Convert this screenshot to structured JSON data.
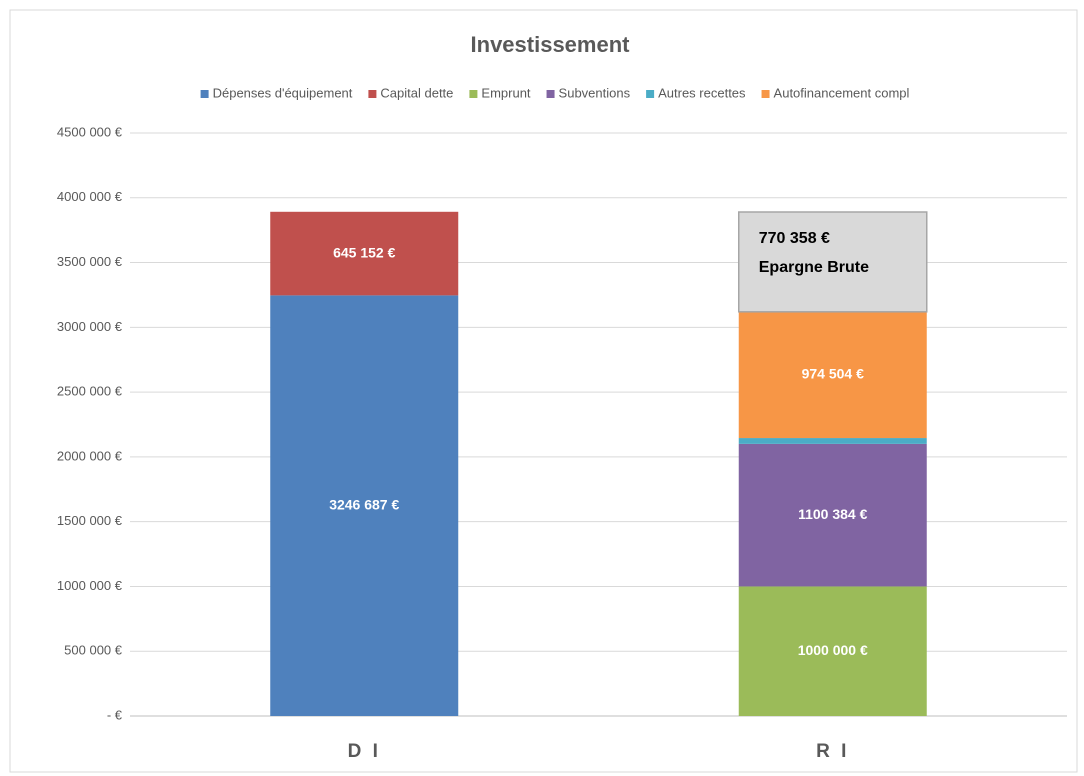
{
  "chart_data": {
    "type": "stacked_bar",
    "title": "Investissement",
    "categories": [
      "D I",
      "R I"
    ],
    "series": [
      {
        "name": "Dépenses d'équipement",
        "color": "#4f81bd",
        "values": [
          3246687,
          null
        ],
        "value_labels": [
          "3246 687 €",
          null
        ]
      },
      {
        "name": "Capital dette",
        "color": "#c0504d",
        "values": [
          645152,
          null
        ],
        "value_labels": [
          "645 152 €",
          null
        ]
      },
      {
        "name": "Emprunt",
        "color": "#9bbb59",
        "values": [
          null,
          1000000
        ],
        "value_labels": [
          null,
          "1000 000 €"
        ]
      },
      {
        "name": "Subventions",
        "color": "#8064a2",
        "values": [
          null,
          1100384
        ],
        "value_labels": [
          null,
          "1100 384 €"
        ]
      },
      {
        "name": "Autres recettes",
        "color": "#4bacc6",
        "values": [
          null,
          45000
        ]
      },
      {
        "name": "Autofinancement compl",
        "color": "#f79646",
        "values": [
          null,
          974504
        ],
        "value_labels": [
          null,
          "974 504 €"
        ]
      }
    ],
    "annotation": {
      "value": 770358,
      "label": "770 358 €",
      "text": "Epargne Brute",
      "color": "#d9d9d9"
    },
    "ylim": [
      0,
      4500000
    ],
    "yticks": [
      {
        "value": 0,
        "label": "-  €"
      },
      {
        "value": 500000,
        "label": "500 000 €"
      },
      {
        "value": 1000000,
        "label": "1000 000 €"
      },
      {
        "value": 1500000,
        "label": "1500 000 €"
      },
      {
        "value": 2000000,
        "label": "2000 000 €"
      },
      {
        "value": 2500000,
        "label": "2500 000 €"
      },
      {
        "value": 3000000,
        "label": "3000 000 €"
      },
      {
        "value": 3500000,
        "label": "3500 000 €"
      },
      {
        "value": 4000000,
        "label": "4000 000 €"
      },
      {
        "value": 4500000,
        "label": "4500 000 €"
      }
    ],
    "grid": true,
    "legend": "top"
  }
}
